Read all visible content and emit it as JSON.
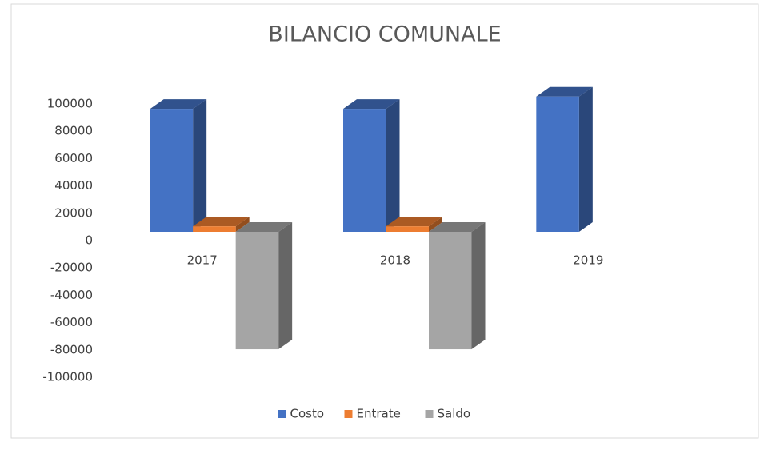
{
  "chart_data": {
    "type": "bar3d",
    "title": "BILANCIO COMUNALE",
    "categories": [
      "2017",
      "2018",
      "2019"
    ],
    "series": [
      {
        "name": "Costo",
        "color": "#4472c4",
        "values": [
          90000,
          90000,
          99000
        ]
      },
      {
        "name": "Entrate",
        "color": "#ed7d31",
        "values": [
          4000,
          4000,
          null
        ]
      },
      {
        "name": "Saldo",
        "color": "#a5a5a5",
        "values": [
          -86000,
          -86000,
          null
        ]
      }
    ],
    "ylim": [
      -100000,
      100000
    ],
    "yticks": [
      -100000,
      -80000,
      -60000,
      -40000,
      -20000,
      0,
      20000,
      40000,
      60000,
      80000,
      100000
    ],
    "grid": false,
    "legend": "bottom"
  }
}
